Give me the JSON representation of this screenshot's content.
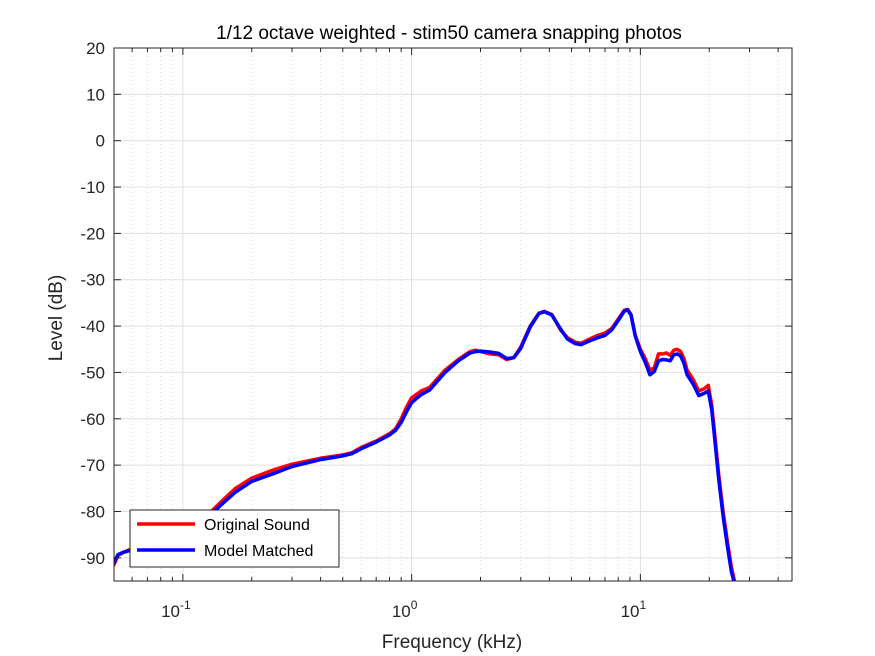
{
  "chart_data": {
    "type": "line",
    "title": "1/12 octave weighted - stim50 camera snapping photos",
    "xlabel": "Frequency (kHz)",
    "ylabel": "Level (dB)",
    "xscale": "log",
    "xlim": [
      0.05,
      46
    ],
    "ylim": [
      -95,
      20
    ],
    "yticks": [
      20,
      10,
      0,
      -10,
      -20,
      -30,
      -40,
      -50,
      -60,
      -70,
      -80,
      -90
    ],
    "xticks": [
      {
        "base": "10",
        "exp": "-1",
        "value": 0.1
      },
      {
        "base": "10",
        "exp": "0",
        "value": 1
      },
      {
        "base": "10",
        "exp": "1",
        "value": 10
      }
    ],
    "grid": true,
    "minor_grid": true,
    "legend_location": "bottom-left",
    "series": [
      {
        "name": "Original Sound",
        "color": "#ff0000",
        "points": [
          [
            0.05,
            -91.5
          ],
          [
            0.052,
            -89.5
          ],
          [
            0.055,
            -88.8
          ],
          [
            0.06,
            -88.0
          ],
          [
            0.065,
            -87.5
          ],
          [
            0.08,
            -86.5
          ],
          [
            0.1,
            -84.5
          ],
          [
            0.13,
            -80.5
          ],
          [
            0.15,
            -77.5
          ],
          [
            0.17,
            -75.0
          ],
          [
            0.2,
            -72.8
          ],
          [
            0.25,
            -71.0
          ],
          [
            0.3,
            -69.8
          ],
          [
            0.4,
            -68.5
          ],
          [
            0.5,
            -67.8
          ],
          [
            0.55,
            -67.3
          ],
          [
            0.6,
            -66.2
          ],
          [
            0.7,
            -64.8
          ],
          [
            0.8,
            -63.2
          ],
          [
            0.85,
            -62.2
          ],
          [
            0.9,
            -60.0
          ],
          [
            0.95,
            -57.5
          ],
          [
            1.0,
            -55.5
          ],
          [
            1.1,
            -54.0
          ],
          [
            1.2,
            -53.2
          ],
          [
            1.4,
            -49.5
          ],
          [
            1.6,
            -47.2
          ],
          [
            1.8,
            -45.5
          ],
          [
            1.9,
            -45.2
          ],
          [
            2.0,
            -45.5
          ],
          [
            2.2,
            -46.0
          ],
          [
            2.4,
            -46.2
          ],
          [
            2.6,
            -47.2
          ],
          [
            2.8,
            -46.8
          ],
          [
            3.0,
            -44.5
          ],
          [
            3.3,
            -40.0
          ],
          [
            3.6,
            -37.2
          ],
          [
            3.8,
            -36.8
          ],
          [
            4.1,
            -37.5
          ],
          [
            4.5,
            -41.0
          ],
          [
            4.8,
            -42.5
          ],
          [
            5.2,
            -43.5
          ],
          [
            5.5,
            -43.7
          ],
          [
            6.0,
            -42.8
          ],
          [
            6.5,
            -42.0
          ],
          [
            7.0,
            -41.5
          ],
          [
            7.5,
            -40.5
          ],
          [
            8.0,
            -38.5
          ],
          [
            8.5,
            -36.6
          ],
          [
            8.8,
            -36.4
          ],
          [
            9.1,
            -37.5
          ],
          [
            9.5,
            -42.0
          ],
          [
            10.0,
            -45.0
          ],
          [
            10.5,
            -47.0
          ],
          [
            11.0,
            -49.5
          ],
          [
            11.5,
            -49.0
          ],
          [
            12.0,
            -46.0
          ],
          [
            12.5,
            -46.0
          ],
          [
            13.0,
            -45.8
          ],
          [
            13.5,
            -46.3
          ],
          [
            14.0,
            -45.2
          ],
          [
            14.5,
            -45.0
          ],
          [
            15.0,
            -45.5
          ],
          [
            15.5,
            -47.0
          ],
          [
            16.0,
            -49.5
          ],
          [
            17.0,
            -51.5
          ],
          [
            18.0,
            -54.0
          ],
          [
            19.0,
            -53.5
          ],
          [
            19.8,
            -52.8
          ],
          [
            20.5,
            -57.0
          ],
          [
            21.0,
            -62.0
          ],
          [
            22.0,
            -72.0
          ],
          [
            23.0,
            -80.0
          ],
          [
            24.0,
            -86.5
          ],
          [
            25.0,
            -92.0
          ],
          [
            25.8,
            -95.0
          ]
        ]
      },
      {
        "name": "Model Matched",
        "color": "#0000ff",
        "points": [
          [
            0.05,
            -91.0
          ],
          [
            0.052,
            -89.3
          ],
          [
            0.055,
            -88.8
          ],
          [
            0.06,
            -88.3
          ],
          [
            0.065,
            -87.7
          ],
          [
            0.08,
            -86.7
          ],
          [
            0.1,
            -84.8
          ],
          [
            0.13,
            -81.0
          ],
          [
            0.15,
            -78.2
          ],
          [
            0.17,
            -75.8
          ],
          [
            0.2,
            -73.5
          ],
          [
            0.25,
            -71.8
          ],
          [
            0.3,
            -70.3
          ],
          [
            0.4,
            -68.8
          ],
          [
            0.5,
            -68.0
          ],
          [
            0.55,
            -67.5
          ],
          [
            0.6,
            -66.5
          ],
          [
            0.7,
            -65.0
          ],
          [
            0.8,
            -63.5
          ],
          [
            0.85,
            -62.5
          ],
          [
            0.9,
            -60.8
          ],
          [
            0.95,
            -58.5
          ],
          [
            1.0,
            -56.5
          ],
          [
            1.1,
            -54.8
          ],
          [
            1.2,
            -53.8
          ],
          [
            1.4,
            -50.0
          ],
          [
            1.6,
            -47.5
          ],
          [
            1.8,
            -45.8
          ],
          [
            1.9,
            -45.5
          ],
          [
            2.0,
            -45.4
          ],
          [
            2.2,
            -45.6
          ],
          [
            2.4,
            -45.9
          ],
          [
            2.6,
            -47.0
          ],
          [
            2.8,
            -46.8
          ],
          [
            3.0,
            -44.8
          ],
          [
            3.3,
            -40.2
          ],
          [
            3.6,
            -37.3
          ],
          [
            3.8,
            -36.9
          ],
          [
            4.1,
            -37.6
          ],
          [
            4.5,
            -40.8
          ],
          [
            4.8,
            -42.8
          ],
          [
            5.2,
            -43.8
          ],
          [
            5.5,
            -44.0
          ],
          [
            6.0,
            -43.2
          ],
          [
            6.5,
            -42.5
          ],
          [
            7.0,
            -42.0
          ],
          [
            7.5,
            -40.8
          ],
          [
            8.0,
            -38.8
          ],
          [
            8.5,
            -36.8
          ],
          [
            8.8,
            -36.5
          ],
          [
            9.1,
            -37.6
          ],
          [
            9.5,
            -42.2
          ],
          [
            10.0,
            -45.5
          ],
          [
            10.5,
            -47.8
          ],
          [
            11.0,
            -50.5
          ],
          [
            11.5,
            -49.8
          ],
          [
            12.0,
            -47.5
          ],
          [
            12.5,
            -47.2
          ],
          [
            13.0,
            -47.3
          ],
          [
            13.5,
            -47.5
          ],
          [
            14.0,
            -46.2
          ],
          [
            14.5,
            -46.0
          ],
          [
            15.0,
            -46.5
          ],
          [
            15.5,
            -48.0
          ],
          [
            16.0,
            -50.5
          ],
          [
            17.0,
            -52.5
          ],
          [
            18.0,
            -55.0
          ],
          [
            19.0,
            -54.5
          ],
          [
            19.8,
            -54.0
          ],
          [
            20.5,
            -58.0
          ],
          [
            21.0,
            -63.0
          ],
          [
            22.0,
            -73.0
          ],
          [
            23.0,
            -81.0
          ],
          [
            24.0,
            -87.5
          ],
          [
            25.0,
            -93.0
          ],
          [
            25.6,
            -95.0
          ]
        ]
      }
    ]
  }
}
